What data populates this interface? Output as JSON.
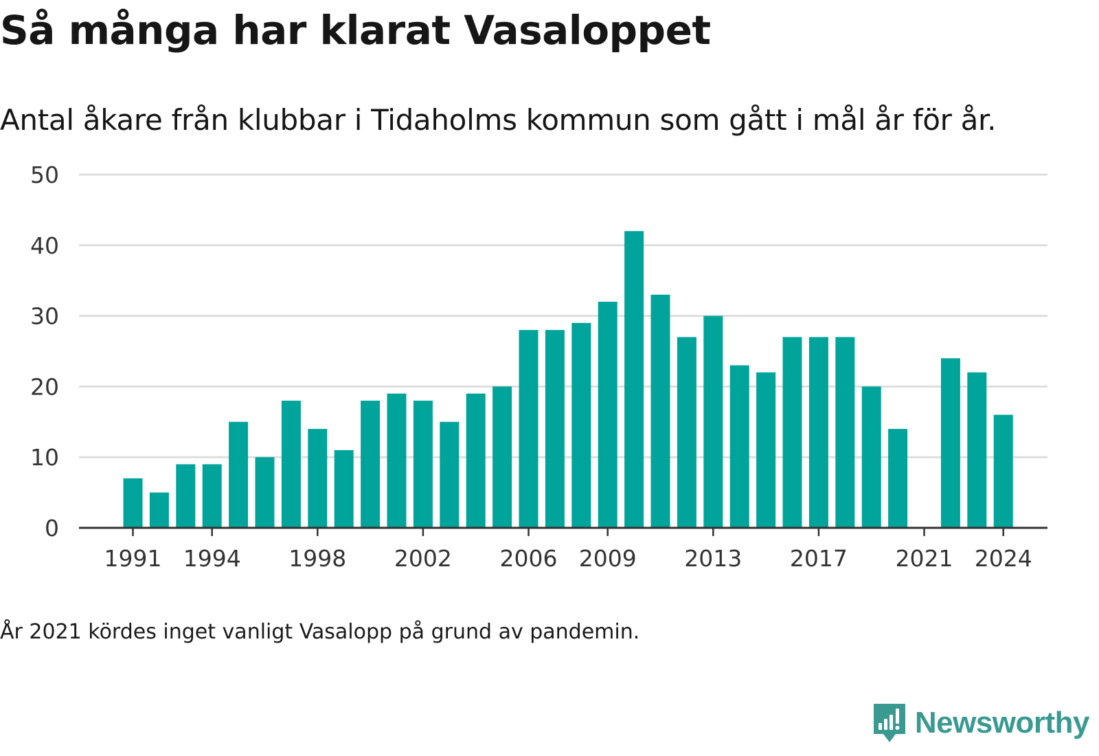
{
  "title": "Så många har klarat Vasaloppet",
  "subtitle": "Antal åkare från klubbar i Tidaholms kommun som gått i mål år för år.",
  "note": "År 2021 kördes inget vanligt Vasalopp på grund av pandemin.",
  "brand": {
    "name": "Newsworthy",
    "icon": "newsworthy-logo-icon",
    "color": "#3a9a92"
  },
  "colors": {
    "bar": "#00a49a",
    "grid": "#dddddd",
    "axis": "#333333"
  },
  "chart_data": {
    "type": "bar",
    "x": [
      1991,
      1992,
      1993,
      1994,
      1995,
      1996,
      1997,
      1998,
      1999,
      2000,
      2001,
      2002,
      2003,
      2004,
      2005,
      2006,
      2007,
      2008,
      2009,
      2010,
      2011,
      2012,
      2013,
      2014,
      2015,
      2016,
      2017,
      2018,
      2019,
      2020,
      2021,
      2022,
      2023,
      2024
    ],
    "values": [
      7,
      5,
      9,
      9,
      15,
      10,
      18,
      14,
      11,
      18,
      19,
      18,
      15,
      19,
      20,
      28,
      28,
      29,
      32,
      42,
      33,
      27,
      30,
      23,
      22,
      27,
      27,
      27,
      20,
      14,
      0,
      24,
      22,
      16
    ],
    "xticks": [
      1991,
      1994,
      1998,
      2002,
      2006,
      2009,
      2013,
      2017,
      2021,
      2024
    ],
    "yticks": [
      0,
      10,
      20,
      30,
      40,
      50
    ],
    "ylim": [
      0,
      50
    ],
    "xlabel": "",
    "ylabel": "",
    "grid": true,
    "legend": "none"
  }
}
